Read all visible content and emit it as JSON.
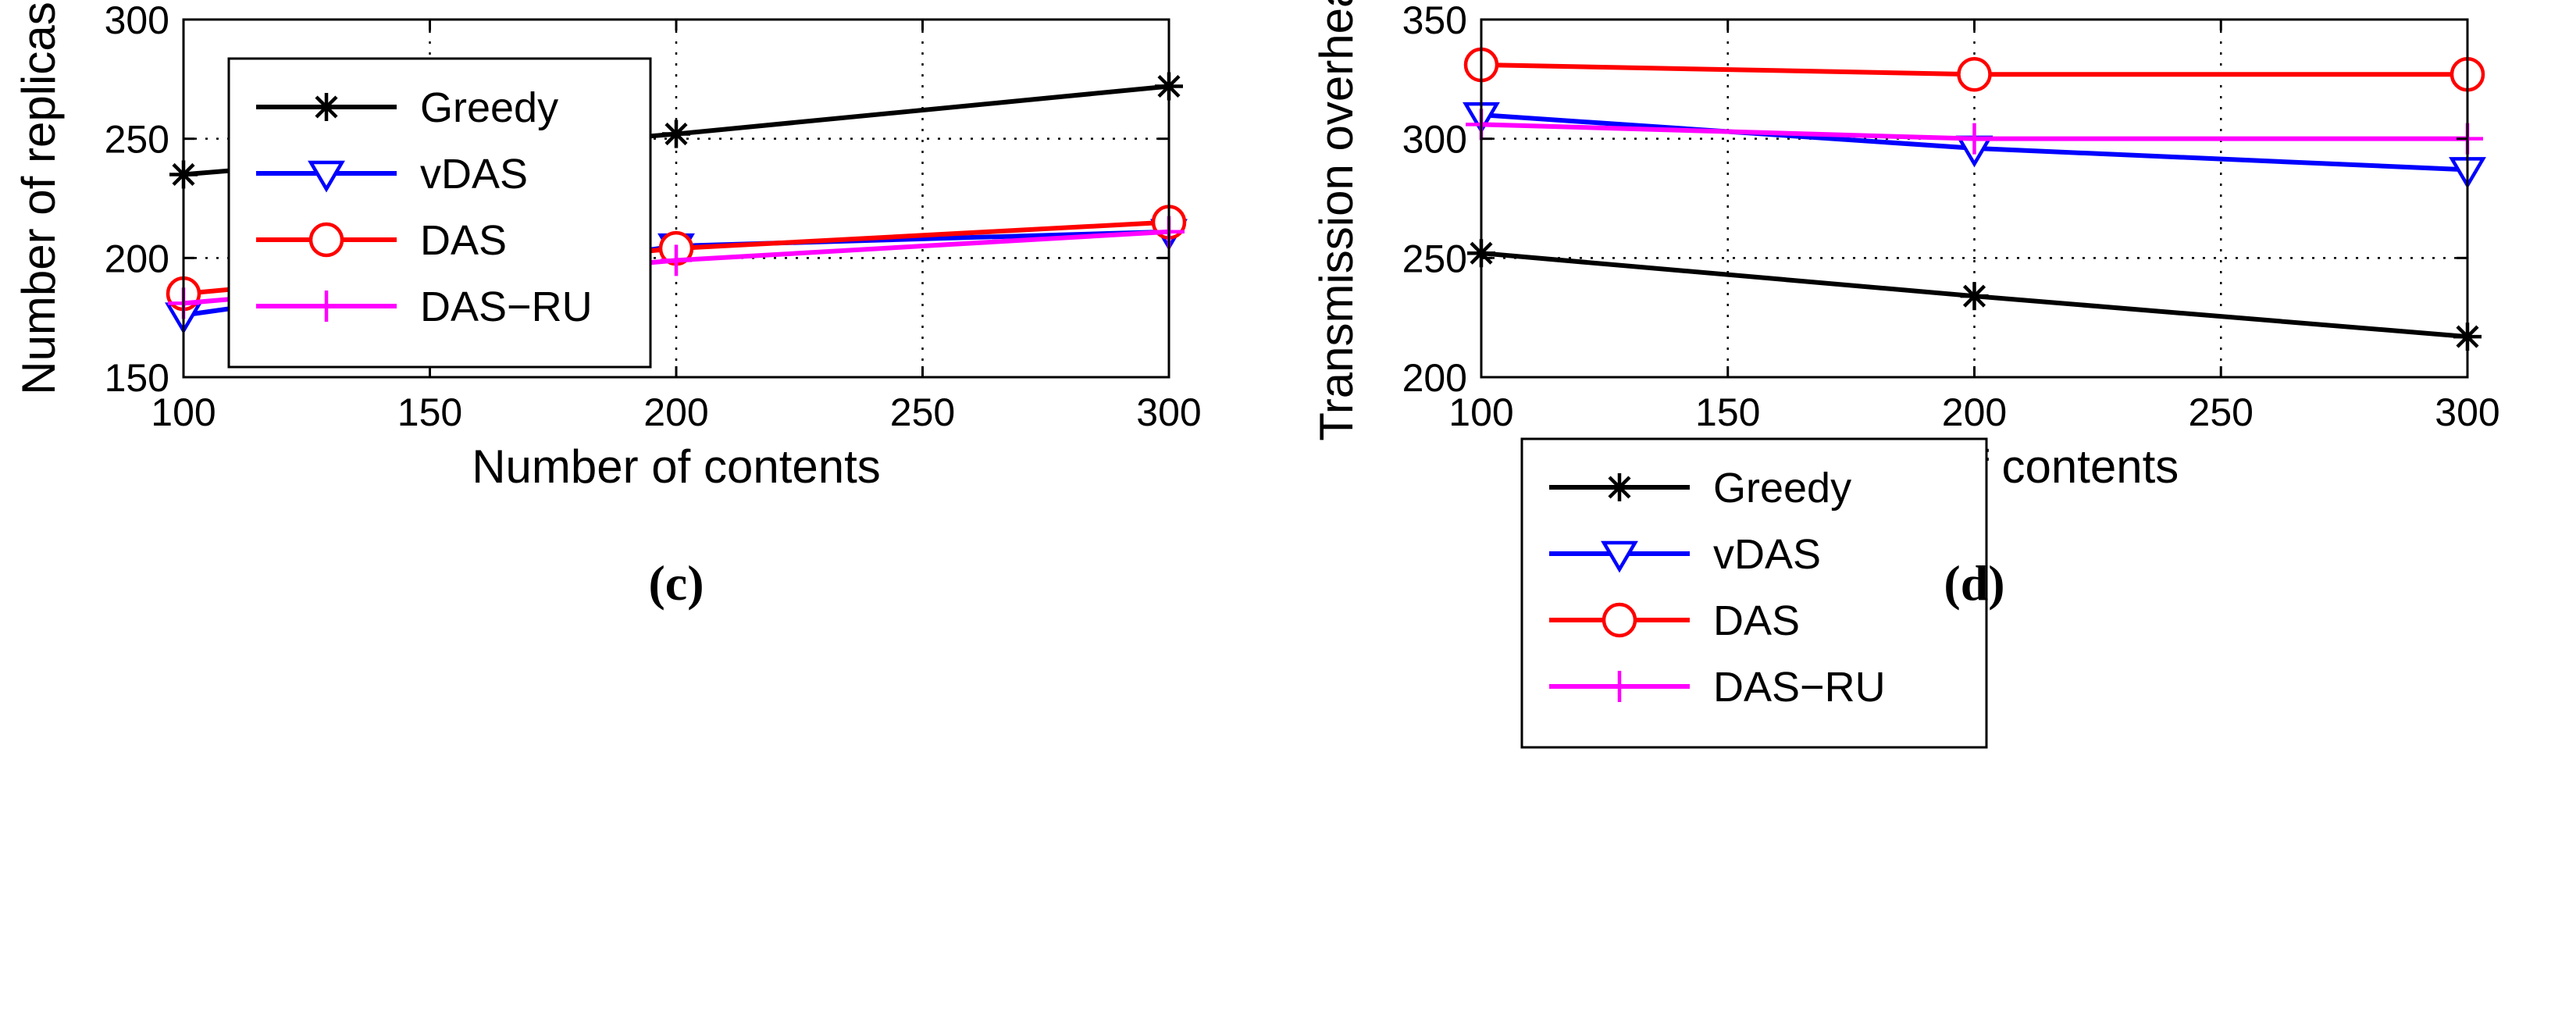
{
  "chart_data": [
    {
      "type": "line",
      "panel": "c",
      "caption": "(c)",
      "xlabel": "Number of contents",
      "ylabel": "Number of replicas",
      "xlim": [
        100,
        300
      ],
      "ylim": [
        150,
        300
      ],
      "xticks": [
        100,
        150,
        200,
        250,
        300
      ],
      "yticks": [
        150,
        200,
        250,
        300
      ],
      "xtick_labels": [
        "100",
        "150",
        "200",
        "250",
        "300"
      ],
      "ytick_labels": [
        "150",
        "200",
        "250",
        "300"
      ],
      "grid": true,
      "legend_position": "top-left",
      "x": [
        100,
        200,
        300
      ],
      "series": [
        {
          "name": "Greedy",
          "marker": "asterisk",
          "color": "#000000",
          "values": [
            235,
            252,
            272
          ]
        },
        {
          "name": "vDAS",
          "marker": "triangle-down",
          "color": "#0000ff",
          "values": [
            176,
            205,
            211
          ]
        },
        {
          "name": "DAS",
          "marker": "circle",
          "color": "#ff0000",
          "values": [
            185,
            204,
            215
          ]
        },
        {
          "name": "DAS−RU",
          "marker": "plus",
          "color": "#ff00ff",
          "values": [
            181,
            199,
            211
          ]
        }
      ]
    },
    {
      "type": "line",
      "panel": "d",
      "caption": "(d)",
      "xlabel": "Number of contents",
      "ylabel": "Transmission overhead",
      "xlim": [
        100,
        300
      ],
      "ylim": [
        200,
        350
      ],
      "xticks": [
        100,
        150,
        200,
        250,
        300
      ],
      "yticks": [
        200,
        250,
        300,
        350
      ],
      "xtick_labels": [
        "100",
        "150",
        "200",
        "250",
        "300"
      ],
      "ytick_labels": [
        "200",
        "250",
        "300",
        "350"
      ],
      "grid": true,
      "legend_position": "bottom-left",
      "x": [
        100,
        200,
        300
      ],
      "series": [
        {
          "name": "Greedy",
          "marker": "asterisk",
          "color": "#000000",
          "values": [
            252,
            234,
            217
          ]
        },
        {
          "name": "vDAS",
          "marker": "triangle-down",
          "color": "#0000ff",
          "values": [
            310,
            296,
            287
          ]
        },
        {
          "name": "DAS",
          "marker": "circle",
          "color": "#ff0000",
          "values": [
            331,
            327,
            327
          ]
        },
        {
          "name": "DAS−RU",
          "marker": "plus",
          "color": "#ff00ff",
          "values": [
            306,
            300,
            300
          ]
        }
      ]
    }
  ]
}
